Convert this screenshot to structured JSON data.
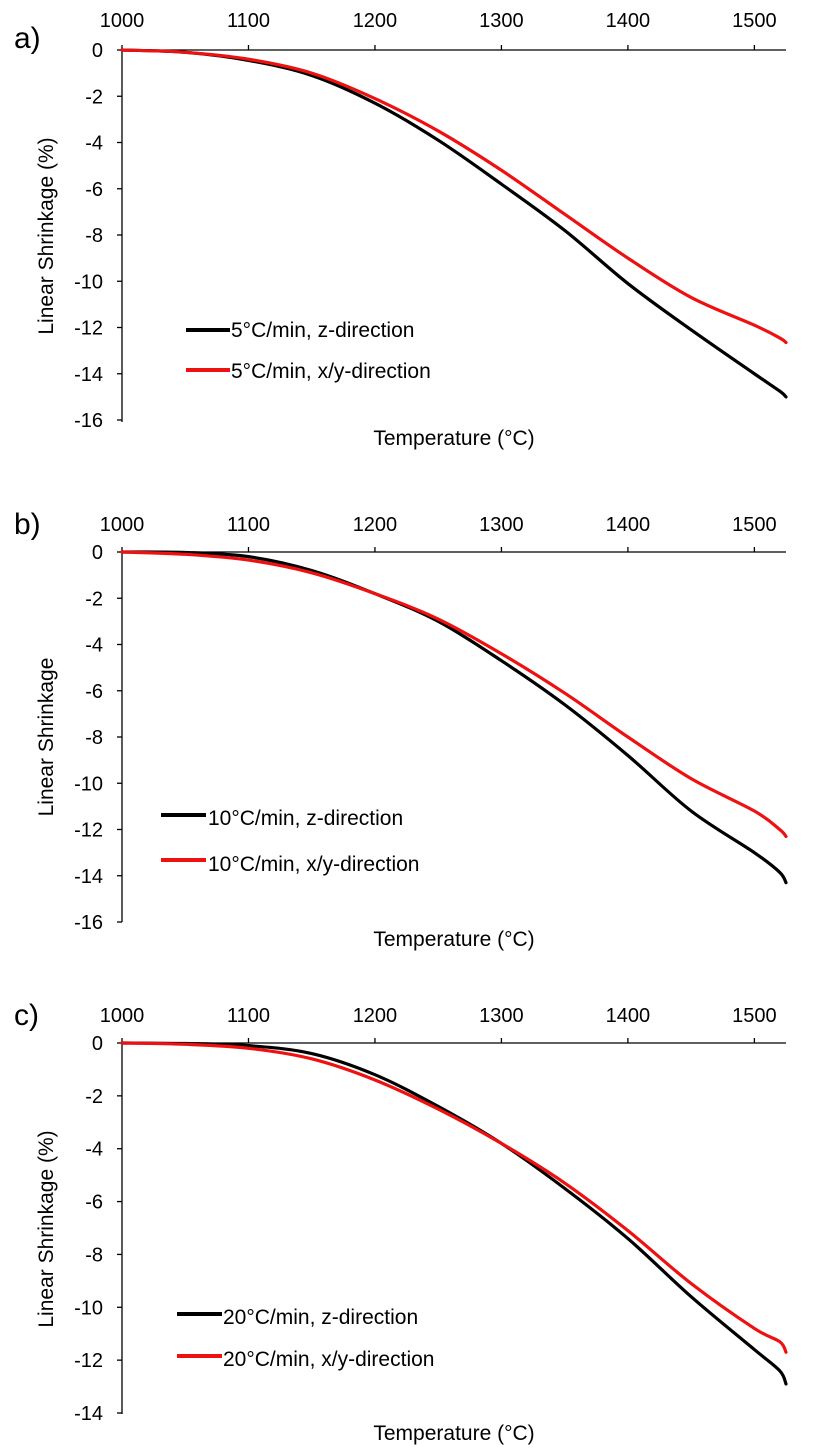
{
  "figure": {
    "panels": [
      "a)",
      "b)",
      "c)"
    ]
  },
  "colors": {
    "z": "#000000",
    "xy": "#ee1111"
  },
  "chart_data": [
    {
      "type": "line",
      "panel_label": "a)",
      "xlabel": "Temperature (°C)",
      "ylabel": "Linear Shrinkage (%)",
      "xlim": [
        1000,
        1525
      ],
      "ylim": [
        -16,
        0
      ],
      "xticks": [
        1000,
        1100,
        1200,
        1300,
        1400,
        1500
      ],
      "yticks": [
        0,
        -2,
        -4,
        -6,
        -8,
        -10,
        -12,
        -14,
        -16
      ],
      "x_axis_position": "top",
      "grid": false,
      "legend_position": "bottom-left",
      "series": [
        {
          "name": "5°C/min, z-direction",
          "color": "#000000",
          "x": [
            1000,
            1050,
            1100,
            1150,
            1200,
            1250,
            1300,
            1350,
            1400,
            1450,
            1500,
            1520,
            1525
          ],
          "y": [
            0,
            -0.1,
            -0.45,
            -1.1,
            -2.3,
            -3.9,
            -5.8,
            -7.8,
            -10.1,
            -12.1,
            -14.0,
            -14.75,
            -15.0
          ]
        },
        {
          "name": "5°C/min, x/y-direction",
          "color": "#ee1111",
          "x": [
            1000,
            1050,
            1100,
            1150,
            1200,
            1250,
            1300,
            1350,
            1400,
            1450,
            1500,
            1520,
            1525
          ],
          "y": [
            0,
            -0.1,
            -0.4,
            -1.0,
            -2.1,
            -3.5,
            -5.2,
            -7.1,
            -9.0,
            -10.7,
            -11.9,
            -12.45,
            -12.65
          ]
        }
      ]
    },
    {
      "type": "line",
      "panel_label": "b)",
      "xlabel": "Temperature (°C)",
      "ylabel": "Linear Shrinkage",
      "xlim": [
        1000,
        1525
      ],
      "ylim": [
        -16,
        0
      ],
      "xticks": [
        1000,
        1100,
        1200,
        1300,
        1400,
        1500
      ],
      "yticks": [
        0,
        -2,
        -4,
        -6,
        -8,
        -10,
        -12,
        -14,
        -16
      ],
      "x_axis_position": "top",
      "grid": false,
      "legend_position": "bottom-left",
      "series": [
        {
          "name": "10°C/min, z-direction",
          "color": "#000000",
          "x": [
            1000,
            1050,
            1100,
            1150,
            1200,
            1250,
            1300,
            1350,
            1400,
            1450,
            1500,
            1520,
            1525
          ],
          "y": [
            0,
            -0.02,
            -0.2,
            -0.8,
            -1.8,
            -3.0,
            -4.7,
            -6.6,
            -8.8,
            -11.2,
            -13.0,
            -13.85,
            -14.3
          ]
        },
        {
          "name": "10°C/min, x/y-direction",
          "color": "#ee1111",
          "x": [
            1000,
            1050,
            1100,
            1150,
            1200,
            1250,
            1300,
            1350,
            1400,
            1450,
            1500,
            1520,
            1525
          ],
          "y": [
            0,
            -0.1,
            -0.35,
            -0.9,
            -1.8,
            -2.9,
            -4.4,
            -6.1,
            -8.0,
            -9.8,
            -11.2,
            -12.0,
            -12.3
          ]
        }
      ]
    },
    {
      "type": "line",
      "panel_label": "c)",
      "xlabel": "Temperature (°C)",
      "ylabel": "Linear Shrinkage (%)",
      "xlim": [
        1000,
        1525
      ],
      "ylim": [
        -14,
        0
      ],
      "xticks": [
        1000,
        1100,
        1200,
        1300,
        1400,
        1500
      ],
      "yticks": [
        0,
        -2,
        -4,
        -6,
        -8,
        -10,
        -12,
        -14
      ],
      "x_axis_position": "top",
      "grid": false,
      "legend_position": "bottom-left",
      "series": [
        {
          "name": "20°C/min, z-direction",
          "color": "#000000",
          "x": [
            1000,
            1050,
            1100,
            1150,
            1200,
            1250,
            1300,
            1350,
            1400,
            1450,
            1500,
            1520,
            1525
          ],
          "y": [
            0,
            -0.02,
            -0.1,
            -0.4,
            -1.2,
            -2.4,
            -3.8,
            -5.5,
            -7.4,
            -9.6,
            -11.6,
            -12.4,
            -12.9
          ]
        },
        {
          "name": "20°C/min, x/y-direction",
          "color": "#ee1111",
          "x": [
            1000,
            1050,
            1100,
            1150,
            1200,
            1250,
            1300,
            1350,
            1400,
            1450,
            1500,
            1520,
            1525
          ],
          "y": [
            0,
            -0.05,
            -0.2,
            -0.6,
            -1.4,
            -2.5,
            -3.8,
            -5.3,
            -7.1,
            -9.1,
            -10.8,
            -11.3,
            -11.7
          ]
        }
      ]
    }
  ]
}
